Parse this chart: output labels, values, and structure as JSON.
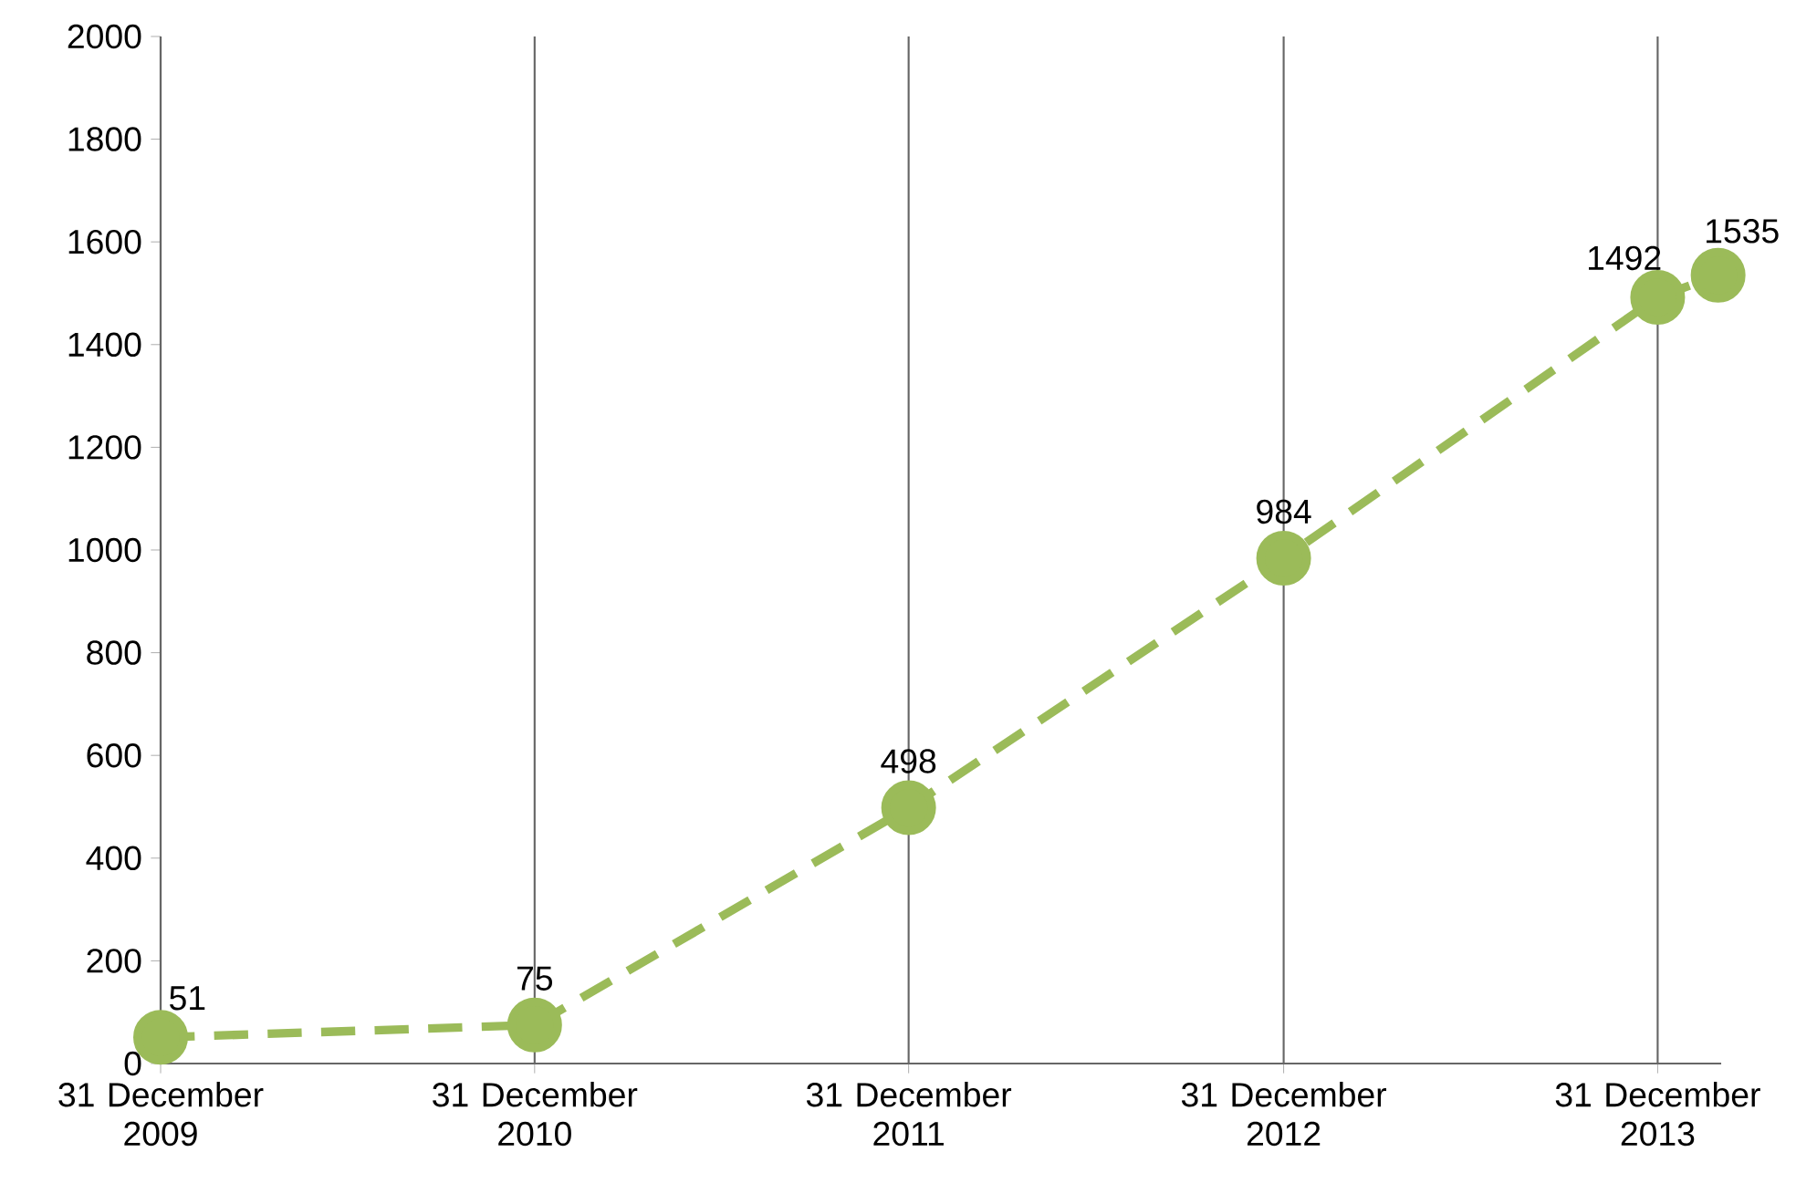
{
  "chart_data": {
    "type": "line",
    "x": [
      "2009-12-31",
      "2010-12-31",
      "2011-12-31",
      "2012-12-31",
      "2013-12-31",
      "2014-02-28"
    ],
    "values": [
      51,
      75,
      498,
      984,
      1492,
      1535
    ],
    "color": "#9bbb59",
    "xlim": [
      "2009-12-31",
      "2014-03-03"
    ],
    "xticks": [
      {
        "value": "2009-12-31",
        "label": "31 December 2009"
      },
      {
        "value": "2010-12-31",
        "label": "31 December 2010"
      },
      {
        "value": "2011-12-31",
        "label": "31 December 2011"
      },
      {
        "value": "2012-12-31",
        "label": "31 December 2012"
      },
      {
        "value": "2013-12-31",
        "label": "31 December 2013"
      }
    ],
    "ylim": [
      0,
      2000
    ],
    "yticks": [
      0,
      200,
      400,
      600,
      800,
      1000,
      1200,
      1400,
      1600,
      1800,
      2000
    ],
    "grid": "x",
    "data_labels": true,
    "marker": "circle",
    "line_style": "dashed"
  }
}
